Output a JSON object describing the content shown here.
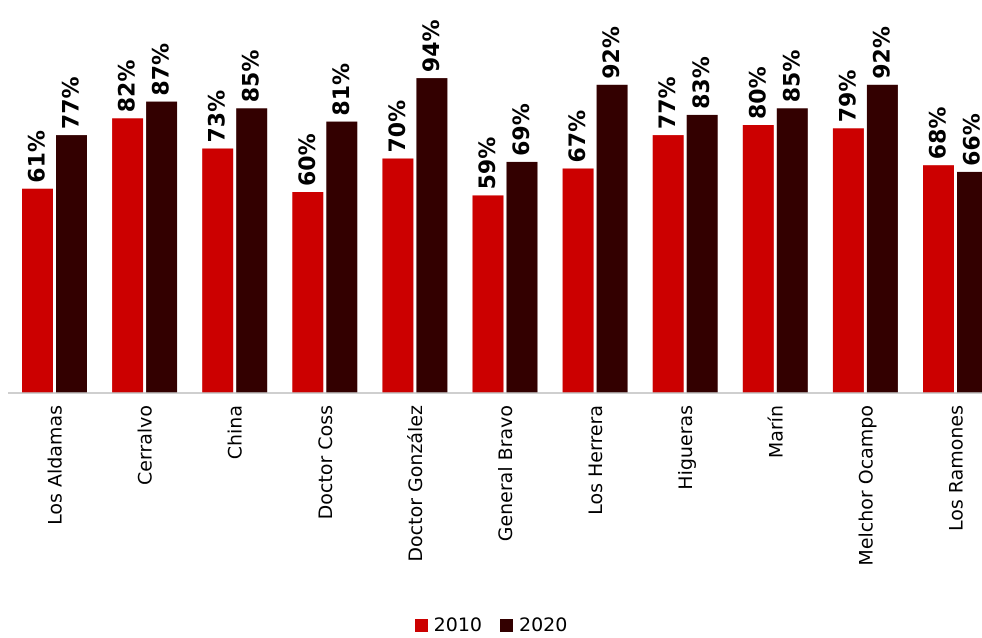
{
  "chart_data": {
    "type": "bar",
    "categories": [
      "Los Aldamas",
      "Cerralvo",
      "China",
      "Doctor Coss",
      "Doctor González",
      "General Bravo",
      "Los Herrera",
      "Higueras",
      "Marín",
      "Melchor Ocampo",
      "Los Ramones"
    ],
    "series": [
      {
        "name": "2010",
        "color": "#cc0000",
        "values": [
          61,
          82,
          73,
          60,
          70,
          59,
          67,
          77,
          80,
          79,
          68
        ],
        "labels": [
          "61%",
          "82%",
          "73%",
          "60%",
          "70%",
          "59%",
          "67%",
          "77%",
          "80%",
          "79%",
          "68%"
        ]
      },
      {
        "name": "2020",
        "color": "#330000",
        "values": [
          77,
          87,
          85,
          81,
          94,
          69,
          92,
          83,
          85,
          92,
          66
        ],
        "labels": [
          "77%",
          "87%",
          "85%",
          "81%",
          "94%",
          "69%",
          "92%",
          "83%",
          "85%",
          "92%",
          "66%"
        ]
      }
    ],
    "ylim": [
      0,
      100
    ],
    "grid": false,
    "legend_position": "bottom",
    "title": "",
    "xlabel": "",
    "ylabel": ""
  }
}
